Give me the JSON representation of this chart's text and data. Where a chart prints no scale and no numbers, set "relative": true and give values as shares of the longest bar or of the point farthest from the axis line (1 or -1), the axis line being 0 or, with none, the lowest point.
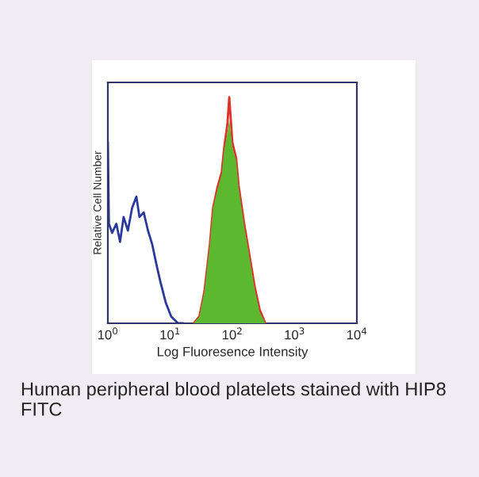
{
  "chart_data": {
    "type": "line",
    "relative": true,
    "log": "x",
    "xlabel": "Log Fluoresence Intensity",
    "ylabel": "Relative Cell Number",
    "xlim": [
      1,
      10000
    ],
    "xticks": [
      {
        "value": 1,
        "label": "10$^{0}$"
      },
      {
        "value": 10,
        "label": "10$^{1}$"
      },
      {
        "value": 100,
        "label": "10$^{2}$"
      },
      {
        "value": 1000,
        "label": "10$^{3}$"
      },
      {
        "value": 10000,
        "label": "10$^{4}$"
      }
    ],
    "tick_labels": "x",
    "grid": false,
    "legend": false,
    "series": [
      {
        "color": "#2b3a9a",
        "x": [
          1,
          1.04,
          1.17,
          1.37,
          1.57,
          1.79,
          2.1,
          2.45,
          2.87,
          3.22,
          3.77,
          4.41,
          5.15,
          6.03,
          7.03,
          8.55,
          10.4,
          13.4,
          16.2
        ],
        "values": [
          0.8,
          0.44,
          0.4,
          0.44,
          0.36,
          0.47,
          0.41,
          0.51,
          0.56,
          0.47,
          0.49,
          0.41,
          0.35,
          0.26,
          0.18,
          0.09,
          0.03,
          0,
          0
        ]
      },
      {
        "color": "#e0302a",
        "x": [
          24,
          29.5,
          35.5,
          43.6,
          49,
          57.5,
          67.6,
          74.1,
          83.2,
          89.1,
          100,
          115,
          126,
          155,
          186,
          229,
          275,
          339
        ],
        "values": [
          0,
          0.03,
          0.14,
          0.35,
          0.51,
          0.6,
          0.67,
          0.78,
          0.88,
          1,
          0.8,
          0.73,
          0.61,
          0.44,
          0.31,
          0.16,
          0.06,
          0
        ]
      },
      {
        "type": "area",
        "color": "#5cb82e",
        "x": [
          24,
          29.5,
          35.5,
          43.6,
          49,
          57.5,
          67.6,
          74.1,
          83.2,
          89.1,
          100,
          115,
          126,
          155,
          186,
          229,
          275,
          339
        ],
        "values": [
          0,
          0.03,
          0.14,
          0.35,
          0.51,
          0.59,
          0.66,
          0.77,
          0.84,
          0.9,
          0.78,
          0.72,
          0.6,
          0.43,
          0.3,
          0.15,
          0.05,
          0
        ]
      }
    ],
    "annotations": [
      "Human peripheral blood platelets stained with HIP8 FITC"
    ]
  }
}
